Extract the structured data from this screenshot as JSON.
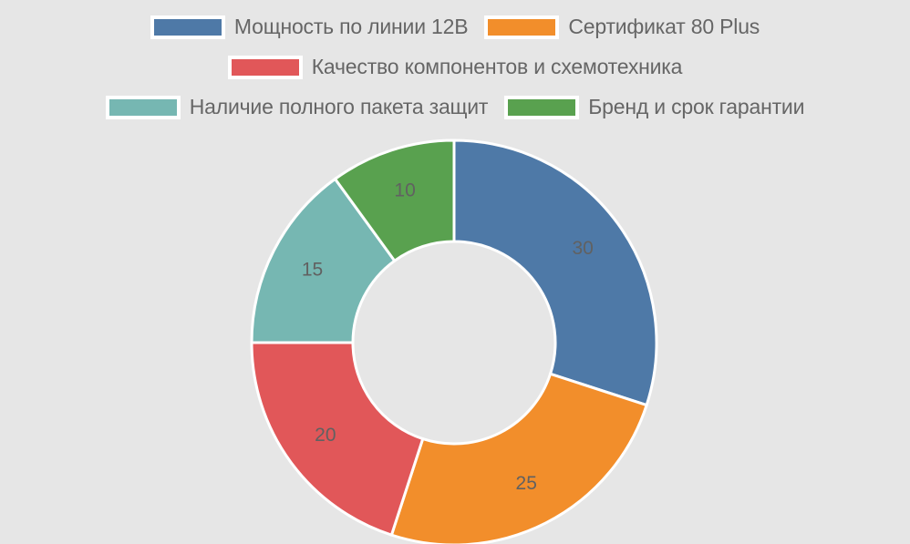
{
  "chart_data": {
    "type": "pie",
    "subtype": "donut",
    "title": "",
    "categories": [
      "Мощность по линии  12В",
      "Сертификат 80 Plus",
      "Качество компонентов и схемотехника",
      "Наличие полного пакета защит",
      "Бренд и срок гарантии"
    ],
    "values": [
      30,
      25,
      20,
      15,
      10
    ],
    "colors": [
      "#4e79a7",
      "#f28e2b",
      "#e15759",
      "#76b7b2",
      "#59a14f"
    ],
    "data_labels": [
      "30",
      "25",
      "20",
      "15",
      "10"
    ],
    "legend_position": "top",
    "start_angle": "12 o'clock, clockwise"
  },
  "legend": {
    "rows": [
      [
        {
          "label": "Мощность по линии  12В",
          "color": "#4e79a7"
        },
        {
          "label": "Сертификат 80 Plus",
          "color": "#f28e2b"
        }
      ],
      [
        {
          "label": "Качество компонентов и схемотехника",
          "color": "#e15759"
        }
      ],
      [
        {
          "label": "Наличие полного пакета защит",
          "color": "#76b7b2"
        },
        {
          "label": "Бренд и срок гарантии",
          "color": "#59a14f"
        }
      ]
    ]
  }
}
